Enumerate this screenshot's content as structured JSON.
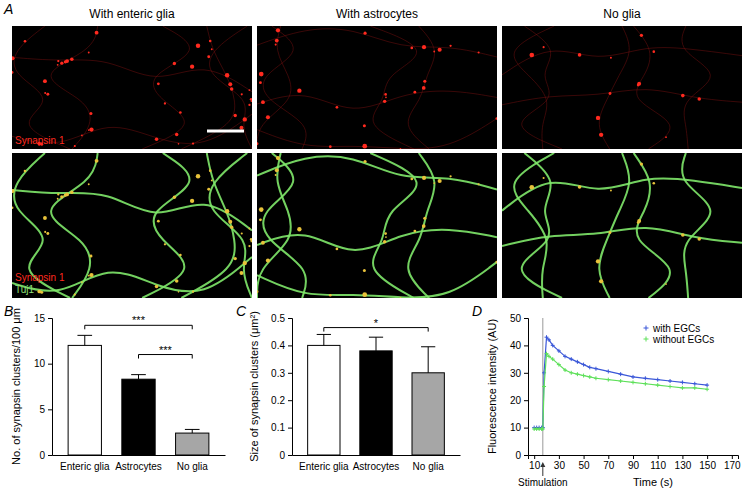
{
  "panel_a": {
    "panel": "A",
    "columns": [
      "With enteric glia",
      "With astrocytes",
      "No glia"
    ],
    "rows": [
      {
        "labels": [
          "Synapsin 1"
        ]
      },
      {
        "labels": [
          "Synapsin 1",
          "Tuj1"
        ]
      }
    ]
  },
  "chart_data": [
    {
      "panel": "B",
      "type": "bar",
      "y_label": "No. of synapsin clusters/100 μm",
      "categories": [
        "Enteric glia",
        "Astrocytes",
        "No glia"
      ],
      "values": [
        12,
        8.3,
        2.4
      ],
      "errors": [
        1.1,
        0.5,
        0.4
      ],
      "colors": [
        "#ffffff",
        "#000000",
        "#a6a6a6"
      ],
      "ylim": [
        0,
        15
      ],
      "yticks": [
        0,
        5,
        10,
        15
      ],
      "annotations": [
        {
          "text": "***",
          "from": 0,
          "to": 2,
          "y": 14.2
        },
        {
          "text": "***",
          "from": 1,
          "to": 2,
          "y": 11
        }
      ]
    },
    {
      "panel": "C",
      "type": "bar",
      "y_label": "Size of synapsin clusters (μm²)",
      "categories": [
        "Enteric glia",
        "Astrocytes",
        "No glia"
      ],
      "values": [
        0.4,
        0.38,
        0.3
      ],
      "errors": [
        0.04,
        0.05,
        0.095
      ],
      "colors": [
        "#ffffff",
        "#000000",
        "#a6a6a6"
      ],
      "ylim": [
        0,
        0.5
      ],
      "yticks": [
        0,
        0.1,
        0.2,
        0.3,
        0.4,
        0.5
      ],
      "annotations": [
        {
          "text": "*",
          "from": 0,
          "to": 2,
          "y": 0.465
        }
      ]
    },
    {
      "panel": "D",
      "type": "line",
      "x_label": "Time (s)",
      "y_label": "Fluorescence intensity (AU)",
      "x": [
        10,
        12,
        14,
        16,
        17,
        18,
        20,
        22,
        25,
        30,
        35,
        40,
        45,
        50,
        55,
        60,
        70,
        80,
        90,
        100,
        110,
        120,
        130,
        140,
        150
      ],
      "series": [
        {
          "name": "with EGCs",
          "color": "#3a57d8",
          "marker": "plus",
          "line_style": "solid",
          "values": [
            10,
            10,
            10,
            10,
            10,
            30,
            43,
            42,
            40,
            38,
            36,
            35,
            34,
            33,
            32,
            31.5,
            30.5,
            29.5,
            28.5,
            28,
            27.5,
            27,
            26.5,
            26,
            25.5
          ]
        },
        {
          "name": "without EGCs",
          "color": "#5ee05a",
          "marker": "plus",
          "line_style": "solid",
          "values": [
            9.5,
            9.5,
            9.5,
            9.5,
            9.5,
            25,
            37,
            36,
            35,
            33,
            31,
            30,
            29.5,
            29,
            28.5,
            28,
            27.5,
            27,
            26.5,
            26,
            25.5,
            25,
            24.5,
            24.5,
            24
          ]
        }
      ],
      "xlim": [
        5,
        175
      ],
      "xticks": [
        10,
        30,
        50,
        70,
        90,
        110,
        130,
        150,
        170
      ],
      "ylim": [
        0,
        50
      ],
      "yticks": [
        0,
        10,
        20,
        30,
        40,
        50
      ],
      "legend": "top-right",
      "annotations": [
        {
          "text": "Stimulation",
          "x": 17
        }
      ]
    }
  ]
}
